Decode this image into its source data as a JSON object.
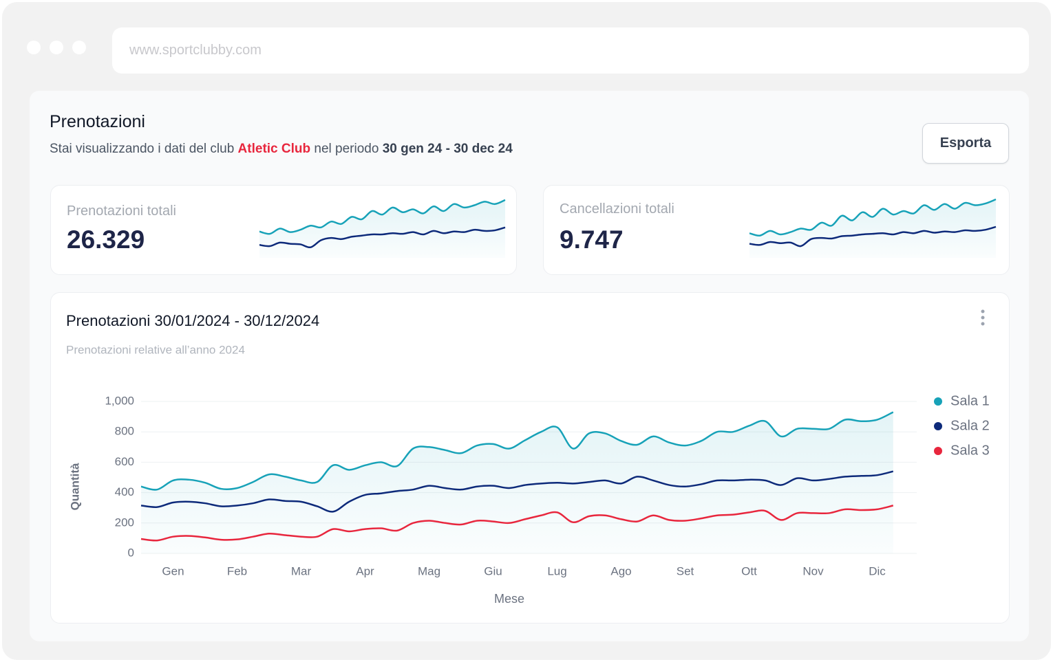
{
  "browser": {
    "url": "www.sportclubby.com"
  },
  "header": {
    "title": "Prenotazioni",
    "subtitle_pre": "Stai visualizzando i dati del club",
    "club": "Atletic Club",
    "subtitle_mid": "nel periodo",
    "period": "30 gen 24 - 30 dec 24",
    "button": "Esporta"
  },
  "cards": [
    {
      "label": "Prenotazioni totali",
      "value": "26.329",
      "sparkline": {
        "ylim": [
          0,
          100
        ],
        "series": [
          {
            "color": "#17a2b8",
            "values": [
              45,
              41,
              50,
              44,
              48,
              55,
              52,
              62,
              58,
              70,
              66,
              80,
              74,
              86,
              78,
              83,
              76,
              88,
              80,
              92,
              86,
              90,
              96,
              92,
              99
            ]
          },
          {
            "color": "#0d2a7a",
            "values": [
              22,
              20,
              26,
              24,
              23,
              18,
              30,
              34,
              32,
              36,
              38,
              40,
              40,
              42,
              41,
              44,
              40,
              46,
              42,
              45,
              44,
              48,
              46,
              47,
              52
            ]
          }
        ]
      }
    },
    {
      "label": "Cancellazioni totali",
      "value": "9.747",
      "sparkline": {
        "ylim": [
          0,
          100
        ],
        "series": [
          {
            "color": "#17a2b8",
            "values": [
              42,
              38,
              46,
              40,
              44,
              50,
              48,
              60,
              55,
              72,
              64,
              78,
              70,
              84,
              74,
              80,
              76,
              90,
              82,
              92,
              84,
              94,
              90,
              93,
              100
            ]
          },
          {
            "color": "#0d2a7a",
            "values": [
              24,
              22,
              27,
              25,
              26,
              20,
              32,
              34,
              33,
              37,
              38,
              40,
              41,
              42,
              40,
              44,
              42,
              46,
              43,
              45,
              44,
              47,
              46,
              48,
              53
            ]
          }
        ]
      }
    }
  ],
  "chart_data": {
    "type": "line",
    "title": "Prenotazioni 30/01/2024 - 30/12/2024",
    "subtitle": "Prenotazioni relative all’anno 2024",
    "x_label": "Mese",
    "y_label": "Quantità",
    "categories": [
      null,
      null,
      "Gen",
      null,
      null,
      null,
      "Feb",
      null,
      null,
      null,
      "Mar",
      null,
      null,
      null,
      "Apr",
      null,
      null,
      null,
      "Mag",
      null,
      null,
      null,
      "Giu",
      null,
      null,
      null,
      "Lug",
      null,
      null,
      null,
      "Ago",
      null,
      null,
      null,
      "Set",
      null,
      null,
      null,
      "Ott",
      null,
      null,
      null,
      "Nov",
      null,
      null,
      null,
      "Dic",
      null
    ],
    "ylim": [
      0,
      1000
    ],
    "yticks": [
      0,
      200,
      400,
      600,
      800,
      {
        "value": 1000,
        "label": "1,000"
      }
    ],
    "grid": true,
    "legend": "top-right",
    "series": [
      {
        "name": "Sala 1",
        "color": "#17a2b8",
        "area": true,
        "values": [
          440,
          420,
          480,
          485,
          465,
          425,
          430,
          470,
          520,
          505,
          480,
          470,
          580,
          550,
          580,
          600,
          575,
          690,
          700,
          680,
          660,
          710,
          720,
          690,
          745,
          800,
          830,
          690,
          790,
          790,
          740,
          715,
          770,
          730,
          710,
          740,
          800,
          800,
          840,
          870,
          770,
          820,
          820,
          820,
          880,
          870,
          880,
          930
        ]
      },
      {
        "name": "Sala 2",
        "color": "#0d2a7a",
        "values": [
          315,
          305,
          335,
          340,
          330,
          310,
          315,
          330,
          355,
          345,
          340,
          310,
          275,
          340,
          385,
          395,
          410,
          420,
          445,
          430,
          420,
          440,
          445,
          430,
          450,
          460,
          465,
          460,
          470,
          480,
          460,
          505,
          480,
          450,
          440,
          455,
          480,
          480,
          485,
          480,
          450,
          495,
          480,
          490,
          505,
          510,
          515,
          540
        ]
      },
      {
        "name": "Sala 3",
        "color": "#e8263d",
        "values": [
          95,
          85,
          110,
          115,
          105,
          90,
          92,
          110,
          130,
          120,
          110,
          110,
          160,
          145,
          160,
          165,
          150,
          200,
          215,
          200,
          190,
          215,
          210,
          200,
          225,
          250,
          270,
          205,
          245,
          250,
          225,
          210,
          250,
          220,
          215,
          230,
          250,
          255,
          270,
          280,
          220,
          265,
          265,
          265,
          290,
          285,
          290,
          315
        ]
      }
    ]
  }
}
